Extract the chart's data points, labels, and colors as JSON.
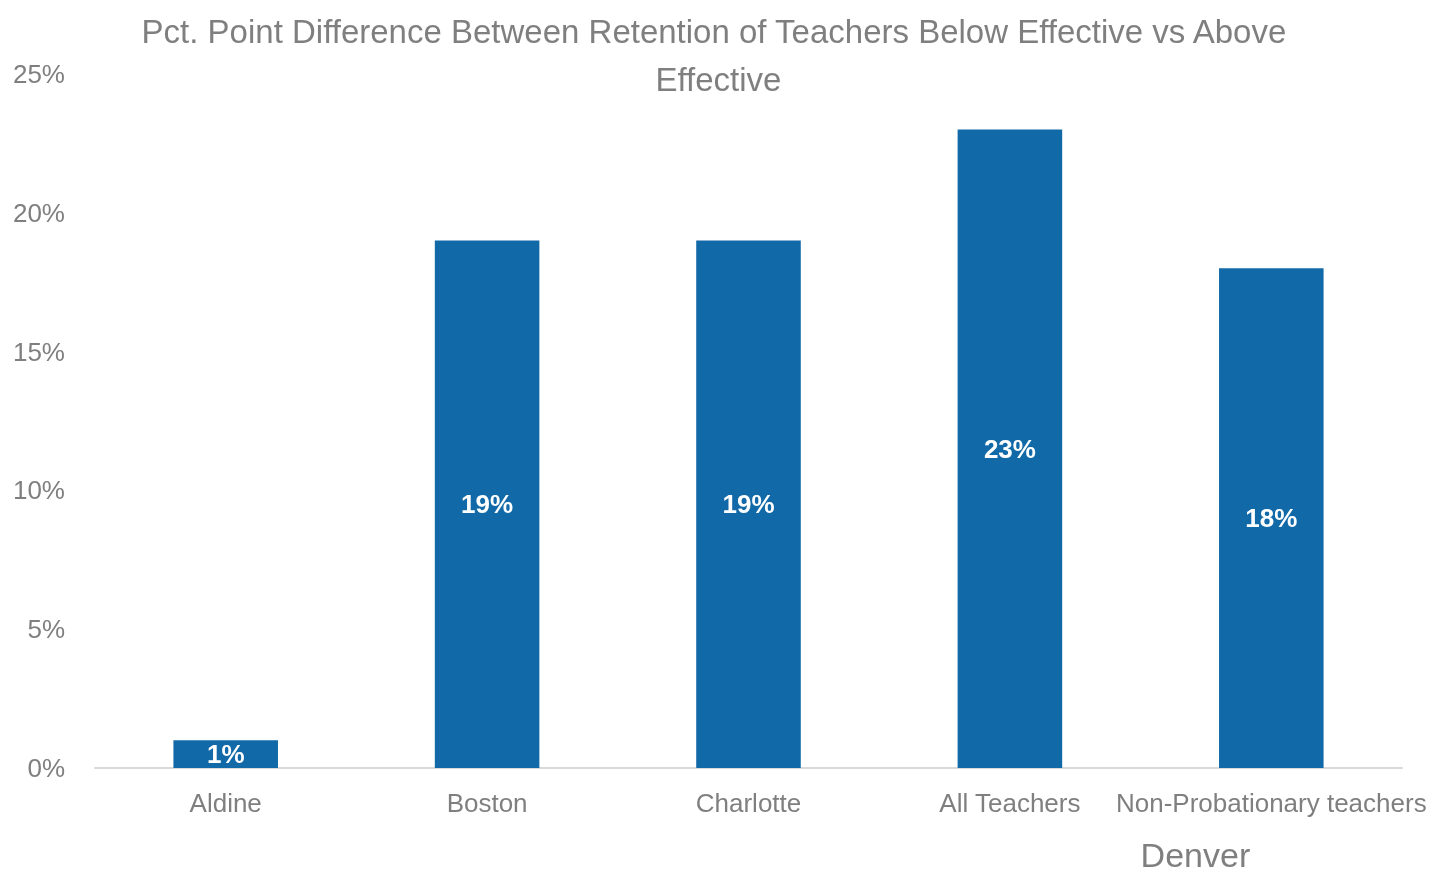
{
  "chart_data": {
    "type": "bar",
    "title": "Pct. Point Difference Between Retention of Teachers Below Effective vs Above Effective",
    "categories": [
      "Aldine",
      "Boston",
      "Charlotte",
      "All Teachers",
      "Non-Probationary teachers"
    ],
    "values": [
      1,
      19,
      19,
      23,
      18
    ],
    "color": "#1269a8",
    "value_labels": [
      "1%",
      "19%",
      "19%",
      "23%",
      "18%"
    ],
    "ylim": [
      0,
      25
    ],
    "yticks": [
      {
        "value": 0,
        "label": "0%"
      },
      {
        "value": 5,
        "label": "5%"
      },
      {
        "value": 10,
        "label": "10%"
      },
      {
        "value": 15,
        "label": "15%"
      },
      {
        "value": 20,
        "label": "20%"
      },
      {
        "value": 25,
        "label": "25%"
      }
    ],
    "grid": false,
    "annotations": [
      "Denver"
    ]
  }
}
